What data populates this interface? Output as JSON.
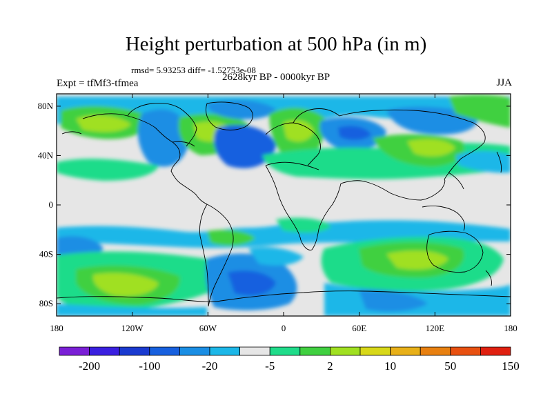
{
  "title": "Height perturbation at 500 hPa (in m)",
  "stats": "rmsd= 5.93253 diff= -1.52753e-08",
  "period": "2628kyr BP - 0000kyr BP",
  "experiment": "Expt = tfMf3-tfmea",
  "season": "JJA",
  "axes": {
    "lat_ticks": [
      "80N",
      "40N",
      "0",
      "40S",
      "80S"
    ],
    "lon_ticks": [
      "180",
      "120W",
      "60W",
      "0",
      "60E",
      "120E",
      "180"
    ]
  },
  "colorbar": {
    "colors": [
      "#7a1fd6",
      "#3a1fe0",
      "#1a3ad0",
      "#1760df",
      "#1a8ee4",
      "#1cb7e8",
      "#e6e6e6",
      "#1fdc8a",
      "#40d040",
      "#a0e020",
      "#d8d818",
      "#e8b018",
      "#e88010",
      "#e85010",
      "#e02010"
    ],
    "labels": [
      "-200",
      "-100",
      "-20",
      "-5",
      "2",
      "10",
      "50",
      "150"
    ]
  },
  "field_colors": {
    "neutral": "#e6e6e6",
    "neg_light": "#1cb7e8",
    "neg_mid": "#1a8ee4",
    "neg_strong": "#1760df",
    "pos_light": "#1fdc8a",
    "pos_mid": "#40d040",
    "pos_strong": "#a0e020"
  }
}
